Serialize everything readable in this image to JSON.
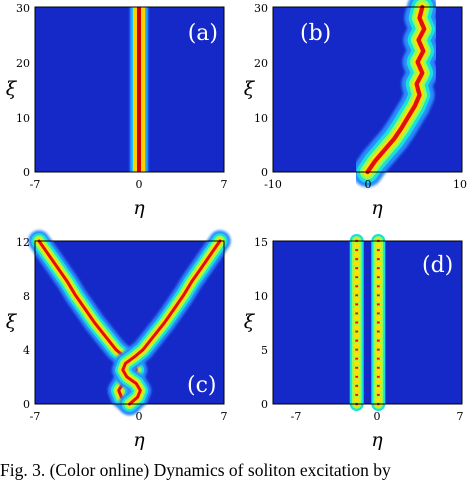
{
  "chart_data": [
    {
      "type": "heatmap",
      "panel_label": "(a)",
      "xlabel": "η",
      "ylabel": "ξ",
      "xlim": [
        -7,
        7
      ],
      "ylim": [
        0,
        30
      ],
      "xticks": [
        "-7",
        "0",
        "7"
      ],
      "yticks": [
        "0",
        "10",
        "20",
        "30"
      ],
      "trajectory": [
        {
          "xi": 0,
          "eta": -0.2
        },
        {
          "xi": 30,
          "eta": -0.2
        }
      ],
      "beam_width": 0.8
    },
    {
      "type": "heatmap",
      "panel_label": "(b)",
      "xlabel": "η",
      "ylabel": "ξ",
      "xlim": [
        -10,
        10
      ],
      "ylim": [
        0,
        30
      ],
      "xticks": [
        "-10",
        "0",
        "10"
      ],
      "yticks": [
        "0",
        "10",
        "20",
        "30"
      ],
      "trajectory": [
        {
          "xi": 0,
          "eta": 0
        },
        {
          "xi": 2,
          "eta": 0.8
        },
        {
          "xi": 4,
          "eta": 1.8
        },
        {
          "xi": 6,
          "eta": 2.8
        },
        {
          "xi": 8,
          "eta": 3.6
        },
        {
          "xi": 10,
          "eta": 4.3
        },
        {
          "xi": 12,
          "eta": 5.0
        },
        {
          "xi": 14,
          "eta": 5.5
        },
        {
          "xi": 16,
          "eta": 5.2
        },
        {
          "xi": 18,
          "eta": 5.8
        },
        {
          "xi": 20,
          "eta": 5.3
        },
        {
          "xi": 22,
          "eta": 5.9
        },
        {
          "xi": 24,
          "eta": 5.4
        },
        {
          "xi": 26,
          "eta": 6.0
        },
        {
          "xi": 28,
          "eta": 5.5
        },
        {
          "xi": 30,
          "eta": 5.8
        }
      ],
      "beam_width": 1.0
    },
    {
      "type": "heatmap",
      "panel_label": "(c)",
      "xlabel": "η",
      "ylabel": "ξ",
      "xlim": [
        -7,
        7
      ],
      "ylim": [
        0,
        12
      ],
      "xticks": [
        "-7",
        "0",
        "7"
      ],
      "yticks": [
        "0",
        "4",
        "8",
        "12"
      ],
      "trajectories": [
        [
          {
            "xi": 0,
            "eta": 0
          },
          {
            "xi": 0.5,
            "eta": -0.6
          },
          {
            "xi": 1,
            "eta": -0.8
          },
          {
            "xi": 1.5,
            "eta": -0.5
          },
          {
            "xi": 2,
            "eta": 0.2
          },
          {
            "xi": 2.5,
            "eta": 0.5
          },
          {
            "xi": 3,
            "eta": 0.3
          },
          {
            "xi": 3.5,
            "eta": -0.4
          },
          {
            "xi": 4,
            "eta": -1.0
          },
          {
            "xi": 5,
            "eta": -1.8
          },
          {
            "xi": 6,
            "eta": -2.6
          },
          {
            "xi": 7,
            "eta": -3.3
          },
          {
            "xi": 8,
            "eta": -4.0
          },
          {
            "xi": 9,
            "eta": -4.6
          },
          {
            "xi": 10,
            "eta": -5.3
          },
          {
            "xi": 11,
            "eta": -6.0
          },
          {
            "xi": 12,
            "eta": -6.7
          }
        ],
        [
          {
            "xi": 0,
            "eta": 0
          },
          {
            "xi": 0.5,
            "eta": 0.6
          },
          {
            "xi": 1,
            "eta": 0.8
          },
          {
            "xi": 1.5,
            "eta": 0.5
          },
          {
            "xi": 2,
            "eta": -0.2
          },
          {
            "xi": 2.5,
            "eta": -0.5
          },
          {
            "xi": 3,
            "eta": -0.3
          },
          {
            "xi": 3.5,
            "eta": 0.4
          },
          {
            "xi": 4,
            "eta": 1.0
          },
          {
            "xi": 5,
            "eta": 1.8
          },
          {
            "xi": 6,
            "eta": 2.6
          },
          {
            "xi": 7,
            "eta": 3.3
          },
          {
            "xi": 8,
            "eta": 4.0
          },
          {
            "xi": 9,
            "eta": 4.6
          },
          {
            "xi": 10,
            "eta": 5.3
          },
          {
            "xi": 11,
            "eta": 6.0
          },
          {
            "xi": 12,
            "eta": 6.7
          }
        ]
      ],
      "beam_width": 0.5
    },
    {
      "type": "heatmap",
      "panel_label": "(d)",
      "xlabel": "η",
      "ylabel": "ξ",
      "xlim": [
        -7,
        7
      ],
      "ylim": [
        0,
        15
      ],
      "xticks": [
        "-7",
        "0",
        "7"
      ],
      "yticks": [
        "0",
        "5",
        "10",
        "15"
      ],
      "trajectories": [
        [
          {
            "xi": 0,
            "eta": -0.8
          },
          {
            "xi": 15,
            "eta": -0.8
          }
        ],
        [
          {
            "xi": 0,
            "eta": 0.8
          },
          {
            "xi": 15,
            "eta": 0.8
          }
        ]
      ],
      "beam_width": 0.45,
      "oscillating": true
    }
  ],
  "caption": "Fig. 3.   (Color online) Dynamics of soliton excitation by"
}
